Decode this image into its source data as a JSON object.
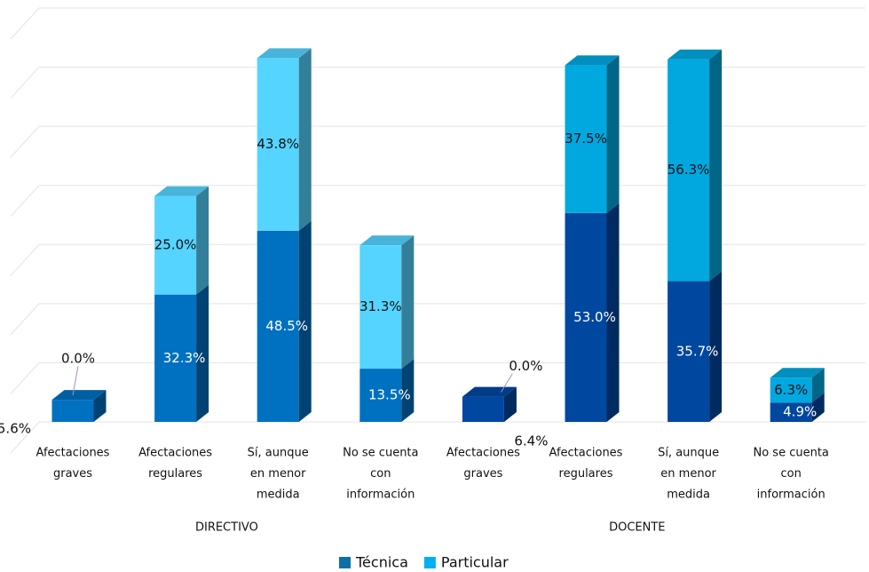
{
  "chart_data": {
    "type": "bar3d_stacked",
    "categories": [
      [
        "Afectaciones",
        "graves"
      ],
      [
        "Afectaciones",
        "regulares"
      ],
      [
        "Sí, aunque",
        "en menor",
        "medida"
      ],
      [
        "No se cuenta",
        "con",
        "información"
      ],
      [
        "Afectaciones",
        "graves"
      ],
      [
        "Afectaciones",
        "regulares"
      ],
      [
        "Sí, aunque",
        "en menor",
        "medida"
      ],
      [
        "No se cuenta",
        "con",
        "información"
      ]
    ],
    "groups": [
      "DIRECTIVO",
      "DOCENTE"
    ],
    "series": [
      {
        "name": "Técnica",
        "color": "#0b70a6",
        "colors": [
          "#0070c0",
          "#0070c0",
          "#0070c0",
          "#0070c0",
          "#0047a0",
          "#0047a0",
          "#0047a0",
          "#0047a0"
        ],
        "values": [
          5.6,
          32.3,
          48.5,
          13.5,
          6.4,
          53.0,
          35.7,
          4.9
        ],
        "value_labels": [
          "5.6%",
          "32.3%",
          "48.5%",
          "13.5%",
          "6.4%",
          "53.0%",
          "35.7%",
          "4.9%"
        ]
      },
      {
        "name": "Particular",
        "color": "#00b0f0",
        "colors": [
          "#55d4ff",
          "#55d4ff",
          "#55d4ff",
          "#55d4ff",
          "#00a8e0",
          "#00a8e0",
          "#00a8e0",
          "#00a8e0"
        ],
        "values": [
          0.0,
          25.0,
          43.8,
          31.3,
          0.0,
          37.5,
          56.3,
          6.3
        ],
        "value_labels": [
          "0.0%",
          "25.0%",
          "43.8%",
          "31.3%",
          "0.0%",
          "37.5%",
          "56.3%",
          "6.3%"
        ]
      }
    ],
    "ylim": [
      0,
      105
    ],
    "yticks": [
      0,
      15,
      30,
      45,
      60,
      75,
      90,
      105
    ],
    "grid": true,
    "legend": "bottom"
  }
}
